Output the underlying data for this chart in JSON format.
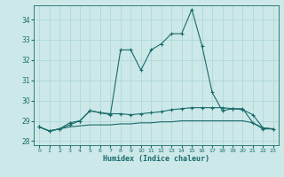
{
  "xlabel": "Humidex (Indice chaleur)",
  "x": [
    0,
    1,
    2,
    3,
    4,
    5,
    6,
    7,
    8,
    9,
    10,
    11,
    12,
    13,
    14,
    15,
    16,
    17,
    18,
    19,
    20,
    21,
    22,
    23
  ],
  "line1": [
    28.7,
    28.5,
    28.6,
    28.9,
    29.0,
    29.5,
    29.4,
    29.3,
    32.5,
    32.5,
    31.5,
    32.5,
    32.8,
    33.3,
    33.3,
    34.5,
    32.7,
    30.4,
    29.5,
    29.6,
    29.6,
    28.9,
    28.6,
    28.6
  ],
  "line2": [
    28.7,
    28.5,
    28.6,
    28.8,
    29.0,
    29.5,
    29.4,
    29.35,
    29.35,
    29.3,
    29.35,
    29.4,
    29.45,
    29.55,
    29.6,
    29.65,
    29.65,
    29.65,
    29.65,
    29.6,
    29.55,
    29.3,
    28.65,
    28.6
  ],
  "line3": [
    28.7,
    28.5,
    28.6,
    28.7,
    28.75,
    28.8,
    28.8,
    28.8,
    28.85,
    28.85,
    28.9,
    28.9,
    28.95,
    28.95,
    29.0,
    29.0,
    29.0,
    29.0,
    29.0,
    29.0,
    29.0,
    28.9,
    28.65,
    28.6
  ],
  "ylim": [
    27.8,
    34.7
  ],
  "xlim": [
    -0.5,
    23.5
  ],
  "yticks": [
    28,
    29,
    30,
    31,
    32,
    33,
    34
  ],
  "xticks": [
    0,
    1,
    2,
    3,
    4,
    5,
    6,
    7,
    8,
    9,
    10,
    11,
    12,
    13,
    14,
    15,
    16,
    17,
    18,
    19,
    20,
    21,
    22,
    23
  ],
  "bg_color": "#cce8e8",
  "line_color": "#1a6b6b",
  "grid_color": "#aad4d4"
}
